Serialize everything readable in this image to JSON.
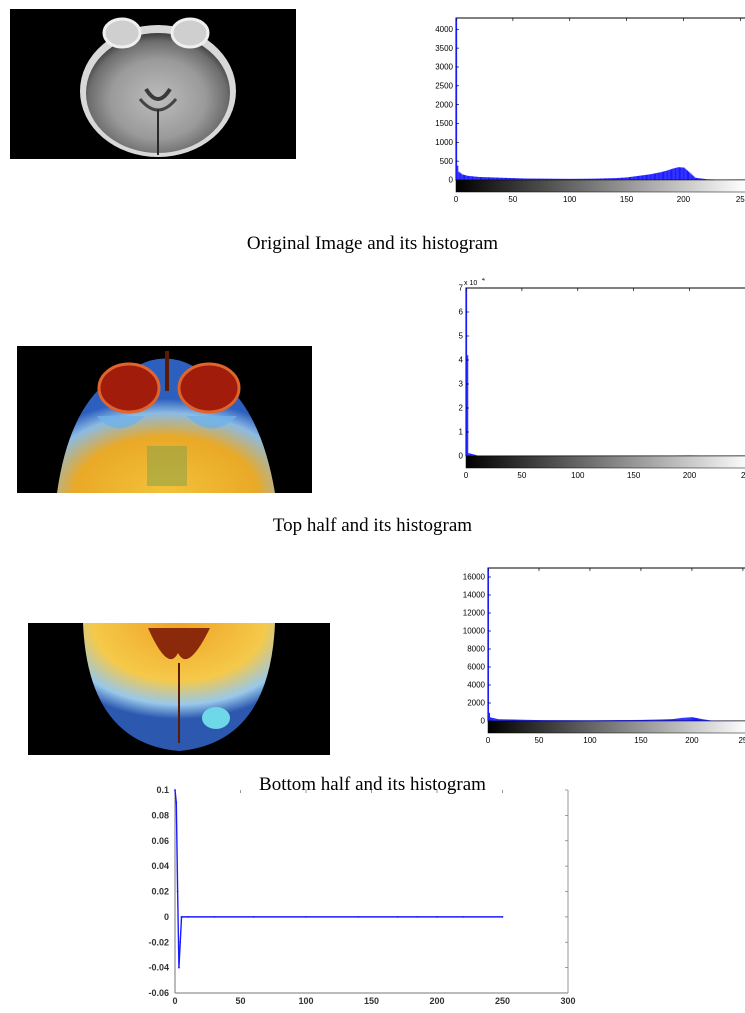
{
  "figures": [
    {
      "caption": "Original Image and its histogram",
      "histogram": {
        "x_ticks": [
          "0",
          "50",
          "100",
          "150",
          "200",
          "25"
        ],
        "y_ticks": [
          "0",
          "500",
          "1000",
          "1500",
          "2000",
          "2500",
          "3000",
          "3500",
          "4000"
        ],
        "y_exponent": ""
      }
    },
    {
      "caption": "Top half and its histogram",
      "histogram": {
        "x_ticks": [
          "0",
          "50",
          "100",
          "150",
          "200",
          "25"
        ],
        "y_ticks": [
          "0",
          "1",
          "2",
          "3",
          "4",
          "5",
          "6",
          "7"
        ],
        "y_exponent": "x 10"
      }
    },
    {
      "caption": "Bottom half and its histogram",
      "histogram": {
        "x_ticks": [
          "0",
          "50",
          "100",
          "150",
          "200",
          "25"
        ],
        "y_ticks": [
          "0",
          "2000",
          "4000",
          "6000",
          "8000",
          "10000",
          "12000",
          "14000",
          "16000"
        ],
        "y_exponent": ""
      }
    }
  ],
  "difference_plot": {
    "x_ticks": [
      "0",
      "50",
      "100",
      "150",
      "200",
      "250",
      "300"
    ],
    "y_ticks": [
      "0.1",
      "0.08",
      "0.06",
      "0.04",
      "0.02",
      "0",
      "-0.02",
      "-0.04",
      "-0.06"
    ]
  },
  "chart_data": [
    {
      "type": "bar",
      "xlim": [
        0,
        255
      ],
      "ylim": [
        0,
        4300
      ],
      "x": [
        0,
        1,
        2,
        5,
        10,
        20,
        40,
        60,
        80,
        100,
        120,
        140,
        150,
        160,
        170,
        180,
        185,
        190,
        195,
        200,
        205,
        210,
        220,
        240,
        255
      ],
      "values": [
        4300,
        380,
        220,
        150,
        110,
        80,
        60,
        40,
        35,
        30,
        35,
        50,
        70,
        110,
        150,
        210,
        250,
        300,
        340,
        330,
        200,
        60,
        20,
        5,
        0
      ],
      "series_color": "#1a1aff"
    },
    {
      "type": "bar",
      "xlim": [
        0,
        255
      ],
      "ylim": [
        0,
        70000
      ],
      "x": [
        0,
        1,
        2,
        10,
        50,
        100,
        150,
        200,
        255
      ],
      "values": [
        70000,
        42000,
        1200,
        200,
        100,
        80,
        120,
        250,
        0
      ],
      "series_color": "#1a1aff"
    },
    {
      "type": "bar",
      "xlim": [
        0,
        255
      ],
      "ylim": [
        0,
        17000
      ],
      "x": [
        0,
        1,
        2,
        10,
        50,
        100,
        150,
        180,
        190,
        200,
        210,
        220,
        255
      ],
      "values": [
        17000,
        900,
        400,
        200,
        100,
        80,
        120,
        200,
        350,
        420,
        200,
        30,
        0
      ],
      "series_color": "#1a1aff"
    },
    {
      "type": "line",
      "xlim": [
        0,
        300
      ],
      "ylim": [
        -0.06,
        0.1
      ],
      "x": [
        0,
        1,
        2,
        3,
        4,
        5,
        10,
        30,
        60,
        100,
        140,
        170,
        185,
        200,
        220,
        250
      ],
      "values": [
        0.1,
        0.09,
        0.02,
        -0.04,
        -0.02,
        0,
        0,
        0,
        0,
        0,
        0,
        0,
        0,
        0,
        0,
        0
      ],
      "series_color": "#1a1aff"
    }
  ]
}
